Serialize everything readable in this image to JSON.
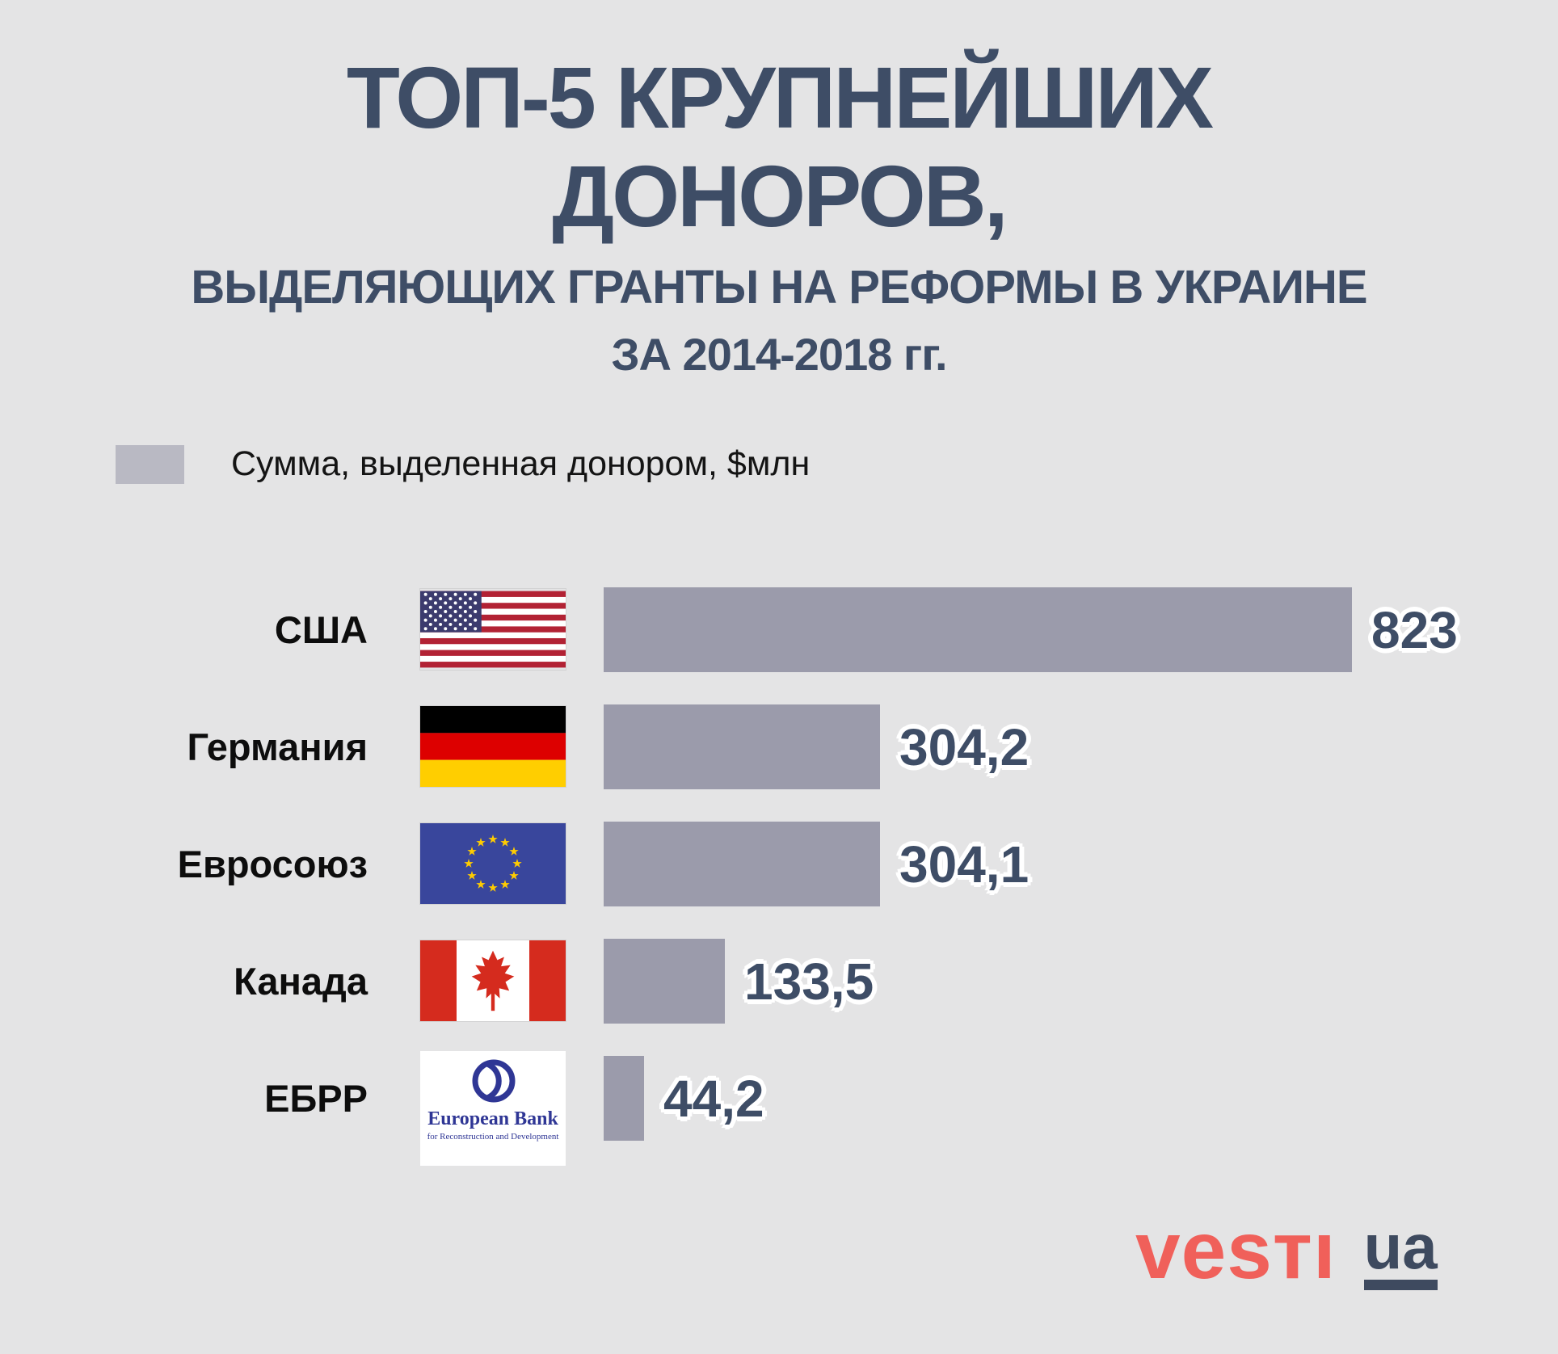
{
  "title": {
    "line1": "ТОП-5 КРУПНЕЙШИХ",
    "line2": "ДОНОРОВ,",
    "line3": "ВЫДЕЛЯЮЩИХ ГРАНТЫ НА РЕФОРМЫ В УКРАИНЕ",
    "line4": "ЗА 2014-2018 гг."
  },
  "legend": {
    "label": "Сумма, выделенная донором, $млн",
    "swatch_color": "#b9b9c3"
  },
  "chart_data": {
    "type": "bar",
    "orientation": "horizontal",
    "title": "ТОП-5 крупнейших доноров, выделяющих гранты на реформы в Украине за 2014-2018 гг.",
    "series_name": "Сумма, выделенная донором, $млн",
    "unit": "$млн",
    "categories": [
      "США",
      "Германия",
      "Евросоюз",
      "Канада",
      "ЕБРР"
    ],
    "values": [
      823,
      304.2,
      304.1,
      133.5,
      44.2
    ],
    "value_labels": [
      "823",
      "304,2",
      "304,1",
      "133,5",
      "44,2"
    ],
    "xlim": [
      0,
      880
    ],
    "grid": false,
    "legend_position": "top-left",
    "bar_color": "#9b9bab",
    "value_color": "#3e4d66"
  },
  "rows": [
    {
      "label": "США",
      "flag": "us-flag",
      "value": 823,
      "value_label": "823"
    },
    {
      "label": "Германия",
      "flag": "de-flag",
      "value": 304.2,
      "value_label": "304,2"
    },
    {
      "label": "Евросоюз",
      "flag": "eu-flag",
      "value": 304.1,
      "value_label": "304,1"
    },
    {
      "label": "Канада",
      "flag": "ca-flag",
      "value": 133.5,
      "value_label": "133,5"
    },
    {
      "label": "ЕБРР",
      "flag": "ebrd-logo",
      "value": 44.2,
      "value_label": "44,2",
      "logo_text1": "European Bank",
      "logo_text2": "for Reconstruction and Development"
    }
  ],
  "footer": {
    "brand": "vesтı",
    "brand_suffix": "ua",
    "brand_color": "#f0605a",
    "suffix_color": "#3e4a5f"
  }
}
